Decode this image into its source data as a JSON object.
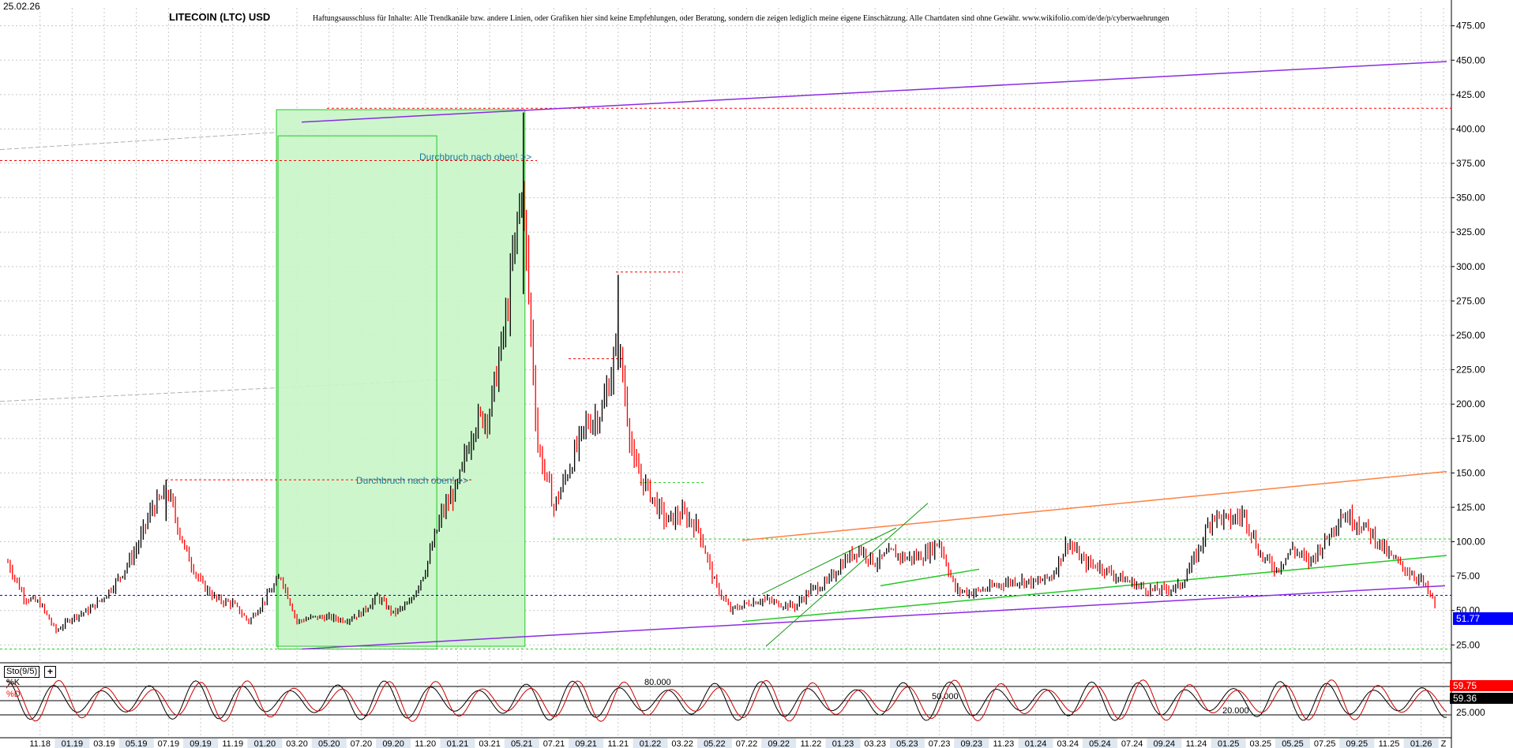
{
  "header": {
    "date": "25.02.26",
    "title": "LITECOIN (LTC) USD",
    "disclaimer": "Haftungsausschluss für Inhalte: Alle Trendkanäle bzw. andere Linien, oder Grafiken hier sind keine Empfehlungen, oder Beratung, sondern die zeigen lediglich meine eigene Einschätzung. Alle Chartdaten sind ohne Gewähr.  www.wikifolio.com/de/de/p/cyberwaehrungen"
  },
  "annotations": {
    "breakout_1": "Durchbruch nach oben! >>",
    "breakout_2": "Durchbruch nach oben! >>"
  },
  "colors": {
    "candle_up": "#000000",
    "candle_down": "#ff0000",
    "support_line": "#8b2be2",
    "resistance_orange": "#ff8040",
    "trend_green": "#22c822",
    "box_fill": "#c8f5c8",
    "stoch_k": "#cc0000",
    "stoch_d": "#000000",
    "current_price_bg": "#0000ff"
  },
  "chart_data": [
    {
      "type": "line",
      "title": "LITECOIN (LTC) USD",
      "y_axis_ticks": [
        "25.00",
        "50.00",
        "75.00",
        "100.00",
        "125.00",
        "150.00",
        "175.00",
        "200.00",
        "225.00",
        "250.00",
        "275.00",
        "300.00",
        "325.00",
        "350.00",
        "375.00",
        "400.00",
        "425.00",
        "450.00",
        "475.00"
      ],
      "ylim": [
        12,
        488
      ],
      "x_axis_ticks": [
        "11.18",
        "01.19",
        "03.19",
        "05.19",
        "07.19",
        "09.19",
        "11.19",
        "01.20",
        "03.20",
        "05.20",
        "07.20",
        "09.20",
        "11.20",
        "01.21",
        "03.21",
        "05.21",
        "07.21",
        "09.21",
        "11.21",
        "01.22",
        "03.22",
        "05.22",
        "07.22",
        "09.22",
        "11.22",
        "01.23",
        "03.23",
        "05.23",
        "07.23",
        "09.23",
        "11.23",
        "01.24",
        "03.24",
        "05.24",
        "07.24",
        "09.24",
        "11.24",
        "01.25",
        "03.25",
        "05.25",
        "07.25",
        "09.25",
        "11.25",
        "01.26",
        "Z"
      ],
      "series": [
        {
          "values_by_month": [
            {
              "x": "09.18",
              "y": 85
            },
            {
              "x": "10.18",
              "y": 60
            },
            {
              "x": "11.18",
              "y": 55
            },
            {
              "x": "12.18",
              "y": 35
            },
            {
              "x": "01.19",
              "y": 45
            },
            {
              "x": "02.19",
              "y": 50
            },
            {
              "x": "03.19",
              "y": 60
            },
            {
              "x": "04.19",
              "y": 75
            },
            {
              "x": "05.19",
              "y": 95
            },
            {
              "x": "06.19",
              "y": 125
            },
            {
              "x": "07.19",
              "y": 135
            },
            {
              "x": "08.19",
              "y": 95
            },
            {
              "x": "09.19",
              "y": 70
            },
            {
              "x": "10.19",
              "y": 58
            },
            {
              "x": "11.19",
              "y": 55
            },
            {
              "x": "12.19",
              "y": 42
            },
            {
              "x": "01.20",
              "y": 58
            },
            {
              "x": "02.20",
              "y": 75
            },
            {
              "x": "03.20",
              "y": 42
            },
            {
              "x": "04.20",
              "y": 45
            },
            {
              "x": "05.20",
              "y": 45
            },
            {
              "x": "06.20",
              "y": 43
            },
            {
              "x": "07.20",
              "y": 48
            },
            {
              "x": "08.20",
              "y": 60
            },
            {
              "x": "09.20",
              "y": 48
            },
            {
              "x": "10.20",
              "y": 55
            },
            {
              "x": "11.20",
              "y": 80
            },
            {
              "x": "12.20",
              "y": 120
            },
            {
              "x": "01.21",
              "y": 140
            },
            {
              "x": "02.21",
              "y": 185
            },
            {
              "x": "03.21",
              "y": 195
            },
            {
              "x": "04.21",
              "y": 260
            },
            {
              "x": "05.21",
              "y": 360
            },
            {
              "x": "06.21",
              "y": 170
            },
            {
              "x": "07.21",
              "y": 125
            },
            {
              "x": "08.21",
              "y": 155
            },
            {
              "x": "09.21",
              "y": 185
            },
            {
              "x": "10.21",
              "y": 195
            },
            {
              "x": "11.21",
              "y": 245
            },
            {
              "x": "12.21",
              "y": 155
            },
            {
              "x": "01.22",
              "y": 135
            },
            {
              "x": "02.22",
              "y": 115
            },
            {
              "x": "03.22",
              "y": 120
            },
            {
              "x": "04.22",
              "y": 110
            },
            {
              "x": "05.22",
              "y": 70
            },
            {
              "x": "06.22",
              "y": 50
            },
            {
              "x": "07.22",
              "y": 55
            },
            {
              "x": "08.22",
              "y": 58
            },
            {
              "x": "09.22",
              "y": 55
            },
            {
              "x": "10.22",
              "y": 53
            },
            {
              "x": "11.22",
              "y": 65
            },
            {
              "x": "12.22",
              "y": 70
            },
            {
              "x": "01.23",
              "y": 85
            },
            {
              "x": "02.23",
              "y": 95
            },
            {
              "x": "03.23",
              "y": 85
            },
            {
              "x": "04.23",
              "y": 92
            },
            {
              "x": "05.23",
              "y": 88
            },
            {
              "x": "06.23",
              "y": 90
            },
            {
              "x": "07.23",
              "y": 100
            },
            {
              "x": "08.23",
              "y": 65
            },
            {
              "x": "09.23",
              "y": 63
            },
            {
              "x": "10.23",
              "y": 66
            },
            {
              "x": "11.23",
              "y": 70
            },
            {
              "x": "12.23",
              "y": 72
            },
            {
              "x": "01.24",
              "y": 70
            },
            {
              "x": "02.24",
              "y": 75
            },
            {
              "x": "03.24",
              "y": 100
            },
            {
              "x": "04.24",
              "y": 85
            },
            {
              "x": "05.24",
              "y": 82
            },
            {
              "x": "06.24",
              "y": 75
            },
            {
              "x": "07.24",
              "y": 70
            },
            {
              "x": "08.24",
              "y": 65
            },
            {
              "x": "09.24",
              "y": 65
            },
            {
              "x": "10.24",
              "y": 68
            },
            {
              "x": "11.24",
              "y": 90
            },
            {
              "x": "12.24",
              "y": 120
            },
            {
              "x": "01.25",
              "y": 115
            },
            {
              "x": "02.25",
              "y": 120
            },
            {
              "x": "03.25",
              "y": 90
            },
            {
              "x": "04.25",
              "y": 80
            },
            {
              "x": "05.25",
              "y": 95
            },
            {
              "x": "06.25",
              "y": 85
            },
            {
              "x": "07.25",
              "y": 100
            },
            {
              "x": "08.25",
              "y": 120
            },
            {
              "x": "09.25",
              "y": 115
            },
            {
              "x": "10.25",
              "y": 105
            },
            {
              "x": "11.25",
              "y": 90
            },
            {
              "x": "12.25",
              "y": 80
            },
            {
              "x": "01.26",
              "y": 72
            },
            {
              "x": "02.26",
              "y": 52
            }
          ]
        }
      ],
      "last_price": "51.77",
      "grid": true,
      "levels": [
        {
          "name": "horizontal-dotted",
          "y": 415,
          "color": "#ff0000"
        },
        {
          "name": "horizontal-dotted",
          "y": 377,
          "color": "#ff0000"
        },
        {
          "name": "horizontal-dotted",
          "y": 145,
          "color": "#ff0000"
        },
        {
          "name": "horizontal-dotted",
          "y": 296,
          "color": "#ff0000"
        },
        {
          "name": "horizontal-dotted",
          "y": 233,
          "color": "#ff0000"
        },
        {
          "name": "horizontal-dotted",
          "y": 102,
          "color": "#22c822"
        },
        {
          "name": "horizontal-dotted",
          "y": 61,
          "color": "#0000ff"
        },
        {
          "name": "horizontal-dotted",
          "y": 22,
          "color": "#22c822"
        }
      ]
    },
    {
      "type": "line",
      "legend": [
        "%K",
        "%D"
      ],
      "indicator_label": "Sto(9/5)",
      "ylim": [
        0,
        100
      ],
      "levels_text": [
        "80.000",
        "50.000",
        "20.000"
      ],
      "y_axis_ticks": [
        "25.000"
      ],
      "k_value": "59.75",
      "d_value": "59.36"
    }
  ]
}
